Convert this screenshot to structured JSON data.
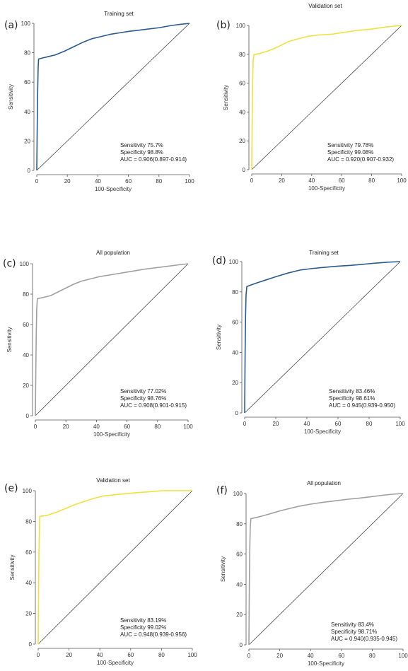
{
  "chart_data": [
    {
      "type": "line",
      "panel": "(a)",
      "title": "Training set",
      "xlabel": "100-Specificity",
      "ylabel": "Sensitivity",
      "xlim": [
        0,
        100
      ],
      "ylim": [
        0,
        100
      ],
      "xticks": [
        "0",
        "20",
        "40",
        "60",
        "80",
        "100"
      ],
      "yticks": [
        "0",
        "20",
        "40",
        "60",
        "80",
        "100"
      ],
      "grid": false,
      "color": "#2b5a8e",
      "stats": [
        "Sensitivity 75.7%",
        "Specificity 98.8%",
        "AUC = 0.906(0.897-0.914)"
      ],
      "series": [
        {
          "x": [
            0,
            0.3,
            0.6,
            0.9,
            1.2,
            4,
            8,
            12,
            18,
            24,
            30,
            36,
            42,
            48,
            54,
            60,
            66,
            72,
            80,
            88,
            94,
            100
          ],
          "y": [
            0,
            30,
            55,
            70,
            75.7,
            76.5,
            77.5,
            78.5,
            81,
            84,
            87,
            89.5,
            91,
            92.5,
            93.5,
            94.5,
            95.2,
            96,
            97,
            98.5,
            99.3,
            100
          ]
        }
      ]
    },
    {
      "type": "line",
      "panel": "(b)",
      "title": "Validation set",
      "xlabel": "100-Specificity",
      "ylabel": "Sensitivity",
      "xlim": [
        0,
        100
      ],
      "ylim": [
        0,
        100
      ],
      "xticks": [
        "0",
        "20",
        "40",
        "60",
        "80",
        "100"
      ],
      "yticks": [
        "0",
        "20",
        "40",
        "60",
        "80",
        "100"
      ],
      "grid": false,
      "color": "#f0e040",
      "stats": [
        "Sensitivity 79.78%",
        "Specificity 99.08%",
        "AUC = 0.920(0.907-0.932)"
      ],
      "series": [
        {
          "x": [
            0,
            0.3,
            0.6,
            0.9,
            1.5,
            5,
            10,
            15,
            20,
            25,
            30,
            38,
            46,
            54,
            60,
            70,
            80,
            90,
            100
          ],
          "y": [
            0,
            35,
            60,
            75,
            79.8,
            80.5,
            82,
            84,
            86.5,
            89,
            90.5,
            92.5,
            93.5,
            94,
            95,
            96.5,
            97.5,
            99,
            100
          ]
        }
      ]
    },
    {
      "type": "line",
      "panel": "(c)",
      "title": "All population",
      "xlabel": "100-Specificity",
      "ylabel": "Sensitivity",
      "xlim": [
        0,
        100
      ],
      "ylim": [
        0,
        100
      ],
      "xticks": [
        "0",
        "20",
        "40",
        "60",
        "80",
        "100"
      ],
      "yticks": [
        "0",
        "20",
        "40",
        "60",
        "80",
        "100"
      ],
      "grid": false,
      "color": "#a0a0a0",
      "stats": [
        "Sensitivity 77.02%",
        "Specificity 98.76%",
        "AUC = 0.908(0.901-0.915)"
      ],
      "series": [
        {
          "x": [
            0,
            0.3,
            0.6,
            0.9,
            1.3,
            5,
            10,
            15,
            20,
            25,
            30,
            36,
            42,
            48,
            54,
            60,
            66,
            72,
            80,
            88,
            94,
            100
          ],
          "y": [
            0,
            30,
            55,
            70,
            77,
            77.8,
            79,
            81.5,
            84,
            86.5,
            88.5,
            90,
            91.5,
            92.5,
            93.5,
            94.5,
            95.5,
            96.5,
            97.5,
            98.5,
            99.3,
            100
          ]
        }
      ]
    },
    {
      "type": "line",
      "panel": "(d)",
      "title": "Training set",
      "xlabel": "100-Specificity",
      "ylabel": "Sensitivity",
      "xlim": [
        0,
        100
      ],
      "ylim": [
        0,
        100
      ],
      "xticks": [
        "0",
        "20",
        "40",
        "60",
        "80",
        "100"
      ],
      "yticks": [
        "0",
        "20",
        "40",
        "60",
        "80",
        "100"
      ],
      "grid": false,
      "color": "#2b5a8e",
      "stats": [
        "Sensitivity 83.46%",
        "Specificity 98.61%",
        "AUC = 0.945(0.939-0.950)"
      ],
      "series": [
        {
          "x": [
            0,
            0.3,
            0.6,
            0.9,
            1.4,
            4,
            8,
            14,
            20,
            28,
            36,
            44,
            52,
            60,
            68,
            76,
            84,
            92,
            100
          ],
          "y": [
            0,
            40,
            65,
            78,
            83.5,
            84.5,
            86,
            88,
            90,
            92.5,
            94.5,
            95.5,
            96.3,
            97,
            97.5,
            98.2,
            99,
            99.6,
            100
          ]
        }
      ]
    },
    {
      "type": "line",
      "panel": "(e)",
      "title": "Validation set",
      "xlabel": "100-Specificity",
      "ylabel": "Sensitivity",
      "xlim": [
        0,
        100
      ],
      "ylim": [
        0,
        100
      ],
      "xticks": [
        "0",
        "20",
        "40",
        "60",
        "80",
        "100"
      ],
      "yticks": [
        "0",
        "20",
        "40",
        "60",
        "80",
        "100"
      ],
      "grid": false,
      "color": "#f0e040",
      "stats": [
        "Sensitivity 83.19%",
        "Specificity 99.02%",
        "AUC = 0.948(0.939-0.956)"
      ],
      "series": [
        {
          "x": [
            0,
            0.3,
            0.6,
            0.9,
            1.0,
            6,
            12,
            18,
            24,
            30,
            36,
            42,
            48,
            56,
            64,
            72,
            80,
            90,
            100
          ],
          "y": [
            0,
            40,
            65,
            78,
            83.2,
            84,
            86,
            88.5,
            91,
            93,
            95,
            96.5,
            97.2,
            98,
            98.7,
            99.3,
            100,
            100,
            100
          ]
        }
      ]
    },
    {
      "type": "line",
      "panel": "(f)",
      "title": "All population",
      "xlabel": "100-Specificity",
      "ylabel": "Sensitivity",
      "xlim": [
        0,
        100
      ],
      "ylim": [
        0,
        100
      ],
      "xticks": [
        "0",
        "20",
        "40",
        "60",
        "80",
        "100"
      ],
      "yticks": [
        "0",
        "20",
        "40",
        "60",
        "80",
        "100"
      ],
      "grid": false,
      "color": "#a0a0a0",
      "stats": [
        "Sensitivity 83.4%",
        "Specificity 98.71%",
        "AUC = 0.940(0.935-0.945)"
      ],
      "series": [
        {
          "x": [
            0,
            0.3,
            0.6,
            0.9,
            1.3,
            5,
            10,
            15,
            20,
            26,
            32,
            40,
            48,
            56,
            64,
            72,
            80,
            88,
            94,
            100
          ],
          "y": [
            0,
            40,
            65,
            78,
            83.4,
            84.2,
            85.5,
            87,
            88.5,
            90,
            91.5,
            93,
            94.2,
            95.2,
            96.2,
            97,
            98,
            99,
            99.6,
            100
          ]
        }
      ]
    }
  ]
}
